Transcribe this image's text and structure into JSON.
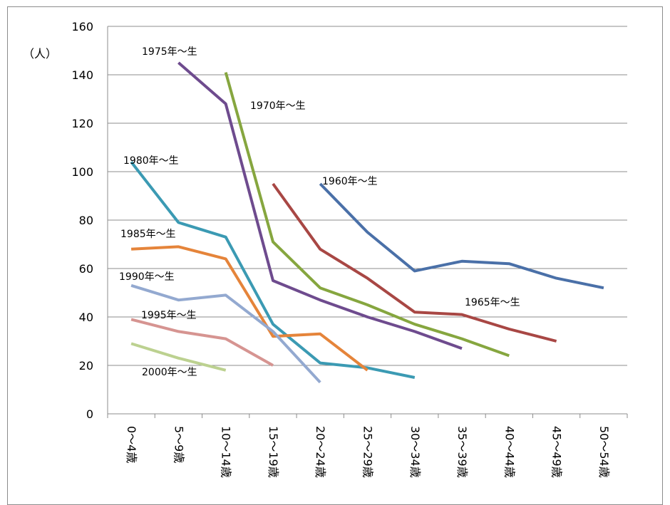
{
  "chart_data": {
    "type": "line",
    "title": "",
    "xlabel": "",
    "ylabel": "（人）",
    "ylim": [
      0,
      160
    ],
    "yticks": [
      0,
      20,
      40,
      60,
      80,
      100,
      120,
      140,
      160
    ],
    "grid": true,
    "categories": [
      "0〜4歳",
      "5〜9歳",
      "10〜14歳",
      "15〜19歳",
      "20〜24歳",
      "25〜29歳",
      "30〜34歳",
      "35〜39歳",
      "40〜44歳",
      "45〜49歳",
      "50〜54歳"
    ],
    "series": [
      {
        "name": "1960年〜生",
        "color": "#4a70a8",
        "values": [
          null,
          null,
          null,
          null,
          95,
          75,
          59,
          63,
          62,
          56,
          52
        ]
      },
      {
        "name": "1965年〜生",
        "color": "#a84744",
        "values": [
          null,
          null,
          null,
          95,
          68,
          56,
          42,
          41,
          35,
          30,
          null
        ]
      },
      {
        "name": "1970年〜生",
        "color": "#86a63f",
        "values": [
          null,
          null,
          141,
          71,
          52,
          45,
          37,
          31,
          24,
          null,
          null
        ]
      },
      {
        "name": "1975年〜生",
        "color": "#6e4b8e",
        "values": [
          null,
          145,
          128,
          55,
          47,
          40,
          34,
          27,
          null,
          null,
          null
        ]
      },
      {
        "name": "1980年〜生",
        "color": "#3b9ab3",
        "values": [
          104,
          79,
          73,
          37,
          21,
          19,
          15,
          null,
          null,
          null,
          null
        ]
      },
      {
        "name": "1985年〜生",
        "color": "#e5843a",
        "values": [
          68,
          69,
          64,
          32,
          33,
          18,
          null,
          null,
          null,
          null,
          null
        ]
      },
      {
        "name": "1990年〜生",
        "color": "#93a9d0",
        "values": [
          53,
          47,
          49,
          34,
          13,
          null,
          null,
          null,
          null,
          null,
          null
        ]
      },
      {
        "name": "1995年〜生",
        "color": "#d69491",
        "values": [
          39,
          34,
          31,
          20,
          null,
          null,
          null,
          null,
          null,
          null,
          null
        ]
      },
      {
        "name": "2000年〜生",
        "color": "#bcd190",
        "values": [
          29,
          23,
          18,
          null,
          null,
          null,
          null,
          null,
          null,
          null,
          null
        ]
      }
    ]
  }
}
